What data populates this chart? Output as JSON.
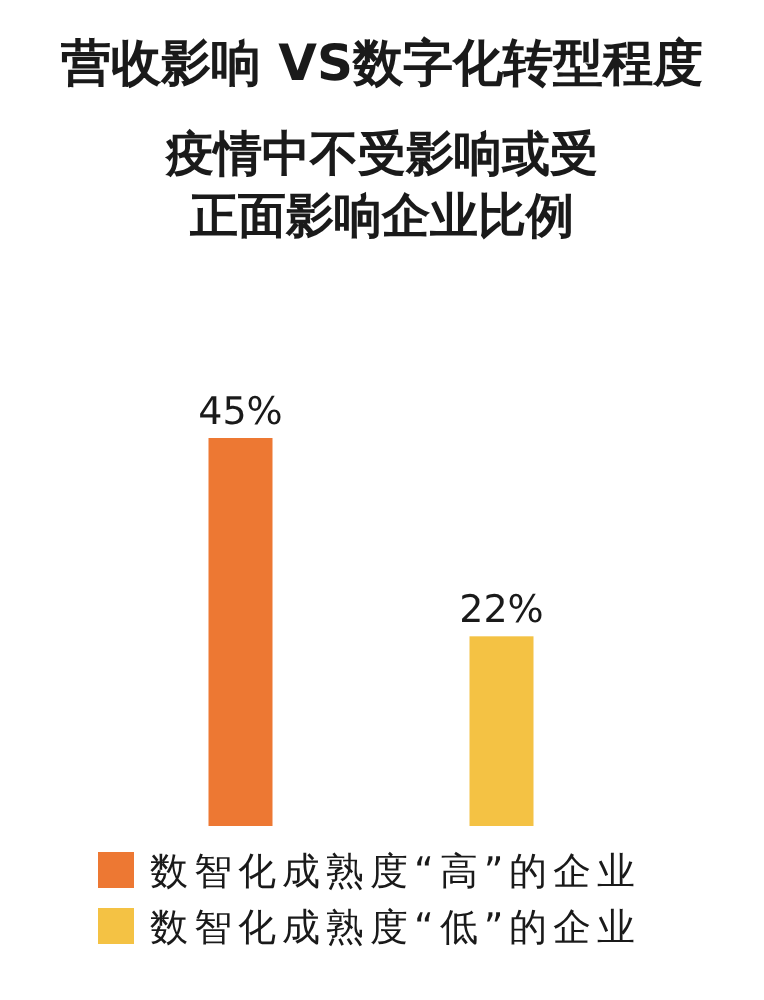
{
  "chart_data": {
    "type": "bar",
    "title": "营收影响 VS数字化转型程度",
    "subtitle": "疫情中不受影响或受正面影响企业比例",
    "legend": "bottom",
    "stacked": true,
    "categories": [
      null,
      null
    ],
    "series": [
      {
        "name": "数智化成熟度“高”的企业",
        "color": "#ed7833",
        "values": [
          45,
          null
        ],
        "value_labels": [
          "45%",
          null
        ]
      },
      {
        "name": "数智化成熟度“低”的企业",
        "color": "#f4c244",
        "values": [
          null,
          22
        ],
        "value_labels": [
          null,
          "22%"
        ]
      }
    ]
  }
}
